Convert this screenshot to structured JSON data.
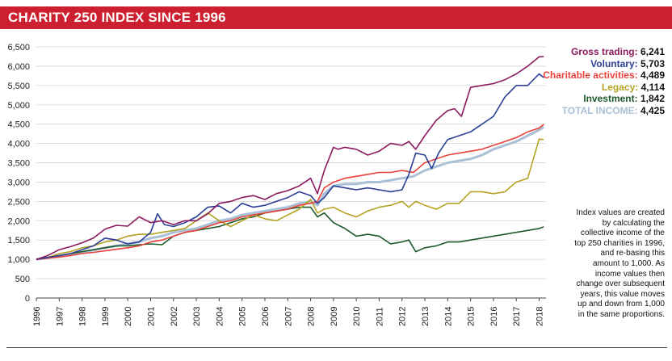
{
  "title": "CHARITY 250 INDEX SINCE 1996",
  "legend": [
    {
      "label": "Gross trading:",
      "value": "6,241",
      "color": "#8b1a5f"
    },
    {
      "label": "Voluntary:",
      "value": "5,703",
      "color": "#2a3f96"
    },
    {
      "label": "Charitable activities:",
      "value": "4,489",
      "color": "#e8423a"
    },
    {
      "label": "Legacy:",
      "value": "4,114",
      "color": "#b5a323"
    },
    {
      "label": "Investment:",
      "value": "1,842",
      "color": "#1f5a2a"
    },
    {
      "label": "TOTAL INCOME:",
      "value": "4,425",
      "color": "#a9c0d6"
    }
  ],
  "note": "Index values are created by calculating the collective income of the top 250 charities in 1996, and re-basing this amount to 1,000. As income values then change over subsequent years, this value moves up and down from 1,000 in the same proportions.",
  "chart_data": {
    "type": "line",
    "title": "CHARITY 250 INDEX SINCE 1996",
    "xlabel": "",
    "ylabel": "",
    "ylim": [
      0,
      6500
    ],
    "yticks": [
      0,
      500,
      1000,
      1500,
      2000,
      2500,
      3000,
      3500,
      4000,
      4500,
      5000,
      5500,
      6000,
      6500
    ],
    "yticklabels": [
      "0",
      "500",
      "1,000",
      "1,500",
      "2,000",
      "2,500",
      "3,000",
      "3,500",
      "4,000",
      "4,500",
      "5,000",
      "5,500",
      "6,000",
      "6,500"
    ],
    "xlim": [
      1996,
      2018.3
    ],
    "xticklabels": [
      "1996",
      "1997",
      "1998",
      "1999",
      "2000",
      "2001",
      "2002",
      "2003",
      "2004",
      "2005",
      "2006",
      "2007",
      "2008",
      "2009",
      "2010",
      "2011",
      "2012",
      "2013",
      "2014",
      "2015",
      "2016",
      "2017",
      "2018"
    ],
    "grid": true,
    "legend_position": "top-right",
    "series": [
      {
        "name": "Gross trading",
        "color": "#8b1a5f",
        "x": [
          1996,
          1996.5,
          1997,
          1997.5,
          1998,
          1998.5,
          1999,
          1999.5,
          2000,
          2000.5,
          2001,
          2001.5,
          2002,
          2002.5,
          2003,
          2003.5,
          2004,
          2004.5,
          2005,
          2005.5,
          2006,
          2006.5,
          2007,
          2007.5,
          2008,
          2008.3,
          2008.6,
          2009,
          2009.2,
          2009.5,
          2010,
          2010.5,
          2011,
          2011.5,
          2012,
          2012.3,
          2012.6,
          2013,
          2013.5,
          2014,
          2014.3,
          2014.6,
          2015,
          2015.5,
          2016,
          2016.5,
          2017,
          2017.5,
          2018,
          2018.2
        ],
        "y": [
          1000,
          1100,
          1250,
          1330,
          1430,
          1550,
          1780,
          1880,
          1860,
          2100,
          1950,
          2000,
          1900,
          2000,
          2000,
          2180,
          2450,
          2500,
          2600,
          2650,
          2550,
          2700,
          2780,
          2900,
          3100,
          2700,
          3300,
          3900,
          3850,
          3900,
          3850,
          3700,
          3800,
          4000,
          3950,
          4050,
          3850,
          4200,
          4600,
          4850,
          4900,
          4700,
          5450,
          5500,
          5550,
          5650,
          5800,
          6000,
          6241,
          6250
        ]
      },
      {
        "name": "Voluntary",
        "color": "#2a3f96",
        "x": [
          1996,
          1996.5,
          1997,
          1997.5,
          1998,
          1998.5,
          1999,
          1999.5,
          2000,
          2000.5,
          2001,
          2001.3,
          2001.6,
          2002,
          2002.5,
          2003,
          2003.5,
          2004,
          2004.5,
          2005,
          2005.5,
          2006,
          2006.5,
          2007,
          2007.5,
          2008,
          2008.3,
          2008.6,
          2009,
          2009.5,
          2010,
          2010.5,
          2011,
          2011.5,
          2012,
          2012.3,
          2012.6,
          2013,
          2013.3,
          2013.6,
          2014,
          2014.5,
          2015,
          2015.5,
          2016,
          2016.5,
          2017,
          2017.5,
          2018,
          2018.2
        ],
        "y": [
          1000,
          1050,
          1100,
          1150,
          1250,
          1350,
          1550,
          1500,
          1400,
          1450,
          1700,
          2180,
          1900,
          1850,
          1950,
          2100,
          2350,
          2380,
          2200,
          2450,
          2350,
          2400,
          2500,
          2600,
          2750,
          2650,
          2450,
          2600,
          2900,
          2850,
          2800,
          2850,
          2800,
          2750,
          2800,
          3200,
          3750,
          3700,
          3350,
          3750,
          4100,
          4200,
          4300,
          4500,
          4700,
          5200,
          5500,
          5500,
          5800,
          5703
        ]
      },
      {
        "name": "Charitable activities",
        "color": "#e8423a",
        "x": [
          1996,
          1996.5,
          1997,
          1997.5,
          1998,
          1998.5,
          1999,
          1999.5,
          2000,
          2000.5,
          2001,
          2001.5,
          2002,
          2002.5,
          2003,
          2003.5,
          2004,
          2004.5,
          2005,
          2005.5,
          2006,
          2006.5,
          2007,
          2007.5,
          2008,
          2008.3,
          2008.6,
          2009,
          2009.5,
          2010,
          2010.5,
          2011,
          2011.5,
          2012,
          2012.5,
          2013,
          2013.5,
          2014,
          2014.5,
          2015,
          2015.5,
          2016,
          2016.5,
          2017,
          2017.5,
          2018,
          2018.2
        ],
        "y": [
          1000,
          1030,
          1060,
          1100,
          1150,
          1180,
          1220,
          1260,
          1300,
          1350,
          1450,
          1500,
          1600,
          1700,
          1750,
          1850,
          1950,
          2000,
          2100,
          2150,
          2200,
          2250,
          2300,
          2400,
          2450,
          2500,
          2850,
          3000,
          3100,
          3150,
          3200,
          3250,
          3250,
          3300,
          3250,
          3500,
          3600,
          3700,
          3750,
          3800,
          3850,
          3950,
          4050,
          4150,
          4300,
          4400,
          4489
        ]
      },
      {
        "name": "Legacy",
        "color": "#b5a323",
        "x": [
          1996,
          1996.5,
          1997,
          1997.5,
          1998,
          1998.5,
          1999,
          1999.5,
          2000,
          2000.5,
          2001,
          2001.5,
          2002,
          2002.5,
          2003,
          2003.5,
          2004,
          2004.5,
          2005,
          2005.5,
          2006,
          2006.5,
          2007,
          2007.5,
          2008,
          2008.3,
          2008.6,
          2009,
          2009.5,
          2010,
          2010.5,
          2011,
          2011.5,
          2012,
          2012.3,
          2012.6,
          2013,
          2013.5,
          2014,
          2014.5,
          2015,
          2015.5,
          2016,
          2016.5,
          2017,
          2017.5,
          2018,
          2018.2
        ],
        "y": [
          1000,
          1050,
          1150,
          1200,
          1300,
          1350,
          1450,
          1500,
          1600,
          1650,
          1650,
          1700,
          1750,
          1800,
          2000,
          2200,
          2000,
          1850,
          2000,
          2150,
          2050,
          2000,
          2150,
          2300,
          2550,
          2200,
          2300,
          2350,
          2200,
          2100,
          2250,
          2350,
          2400,
          2500,
          2350,
          2500,
          2400,
          2300,
          2450,
          2450,
          2750,
          2750,
          2700,
          2750,
          3000,
          3100,
          4114,
          4100
        ]
      },
      {
        "name": "Investment",
        "color": "#1f5a2a",
        "x": [
          1996,
          1996.5,
          1997,
          1997.5,
          1998,
          1998.5,
          1999,
          1999.5,
          2000,
          2000.5,
          2001,
          2001.5,
          2002,
          2002.5,
          2003,
          2003.5,
          2004,
          2004.5,
          2005,
          2005.5,
          2006,
          2006.5,
          2007,
          2007.5,
          2008,
          2008.3,
          2008.6,
          2009,
          2009.5,
          2010,
          2010.5,
          2011,
          2011.5,
          2012,
          2012.3,
          2012.6,
          2013,
          2013.5,
          2014,
          2014.5,
          2015,
          2015.5,
          2016,
          2016.5,
          2017,
          2017.5,
          2018,
          2018.2
        ],
        "y": [
          1000,
          1050,
          1100,
          1150,
          1200,
          1250,
          1300,
          1350,
          1350,
          1380,
          1400,
          1380,
          1600,
          1700,
          1750,
          1800,
          1850,
          1950,
          2050,
          2100,
          2200,
          2250,
          2300,
          2350,
          2350,
          2100,
          2200,
          1950,
          1800,
          1600,
          1650,
          1600,
          1400,
          1450,
          1500,
          1200,
          1300,
          1350,
          1450,
          1450,
          1500,
          1550,
          1600,
          1650,
          1700,
          1750,
          1800,
          1842
        ]
      },
      {
        "name": "TOTAL INCOME",
        "color": "#a9c0d6",
        "x": [
          1996,
          1996.5,
          1997,
          1997.5,
          1998,
          1998.5,
          1999,
          1999.5,
          2000,
          2000.5,
          2001,
          2001.5,
          2002,
          2002.5,
          2003,
          2003.5,
          2004,
          2004.5,
          2005,
          2005.5,
          2006,
          2006.5,
          2007,
          2007.5,
          2008,
          2008.3,
          2008.6,
          2009,
          2009.5,
          2010,
          2010.5,
          2011,
          2011.5,
          2012,
          2012.5,
          2013,
          2013.5,
          2014,
          2014.5,
          2015,
          2015.5,
          2016,
          2016.5,
          2017,
          2017.5,
          2018,
          2018.2
        ],
        "y": [
          1000,
          1040,
          1080,
          1120,
          1180,
          1240,
          1300,
          1350,
          1400,
          1450,
          1550,
          1600,
          1700,
          1750,
          1800,
          1900,
          2000,
          2050,
          2150,
          2200,
          2250,
          2300,
          2350,
          2450,
          2500,
          2400,
          2700,
          2900,
          2950,
          2950,
          3000,
          3000,
          3050,
          3100,
          3150,
          3300,
          3400,
          3500,
          3550,
          3600,
          3700,
          3850,
          3950,
          4050,
          4200,
          4350,
          4425
        ]
      }
    ]
  }
}
